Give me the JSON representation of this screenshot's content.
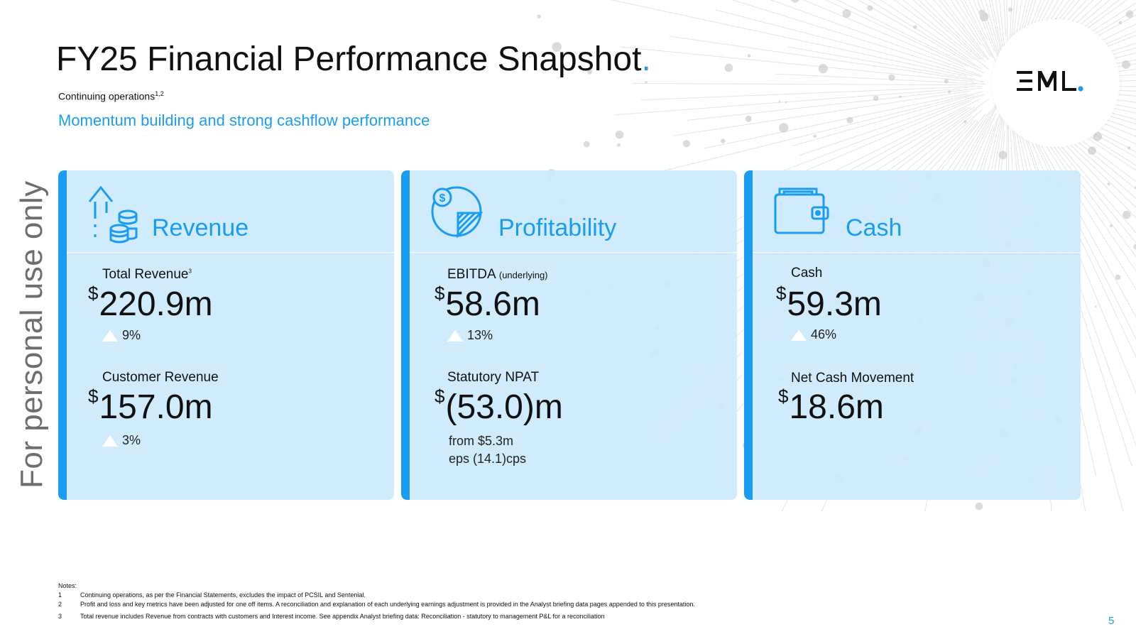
{
  "watermark": "For personal use only",
  "title": "FY25 Financial Performance Snapshot",
  "title_dot": ".",
  "subtitle": "Continuing operations",
  "subtitle_sup": "1,2",
  "tagline": "Momentum building and strong cashflow performance",
  "logo_text": "EML.",
  "cards": [
    {
      "title": "Revenue",
      "icon": "revenue-growth-coins-icon",
      "metrics": [
        {
          "label": "Total Revenue",
          "label_sup": "3",
          "currency": "$",
          "value": "220.9m",
          "change": "9%"
        },
        {
          "label": "Customer Revenue",
          "currency": "$",
          "value": "157.0m",
          "change": "3%"
        }
      ]
    },
    {
      "title": "Profitability",
      "icon": "pie-chart-dollar-icon",
      "metrics": [
        {
          "label": "EBITDA",
          "label_small": "(underlying)",
          "currency": "$",
          "value": "58.6m",
          "change": "13%"
        },
        {
          "label": "Statutory NPAT",
          "currency": "$",
          "value": "(53.0)m",
          "note1": "from $5.3m",
          "note2": "eps (14.1)cps"
        }
      ]
    },
    {
      "title": "Cash",
      "icon": "wallet-icon",
      "metrics": [
        {
          "label": "Cash",
          "currency": "$",
          "value": "59.3m",
          "change": "46%"
        },
        {
          "label": "Net Cash Movement",
          "currency": "$",
          "value": "18.6m"
        }
      ]
    }
  ],
  "notes": {
    "heading": "Notes:",
    "items": [
      {
        "num": "1",
        "text": "Continuing operations, as per the Financial Statements, excludes the impact of PCSIL and Sentenial."
      },
      {
        "num": "2",
        "text": "Profit and loss and key metrics have been adjusted for one off items. A reconciliation and explanation of each underlying earnings adjustment is provided in the Analyst briefing data pages appended to this presentation."
      },
      {
        "num": "3",
        "text": "Total revenue includes Revenue from contracts with customers and Interest income.  See appendix Analyst briefing data: Reconciliation - statutory to management P&L for a reconciliation"
      }
    ]
  },
  "page_number": "5",
  "colors": {
    "accent": "#1a9cf0",
    "card_bg": "#cce9fc",
    "text": "#111111",
    "watermark": "#6e6e6e"
  }
}
